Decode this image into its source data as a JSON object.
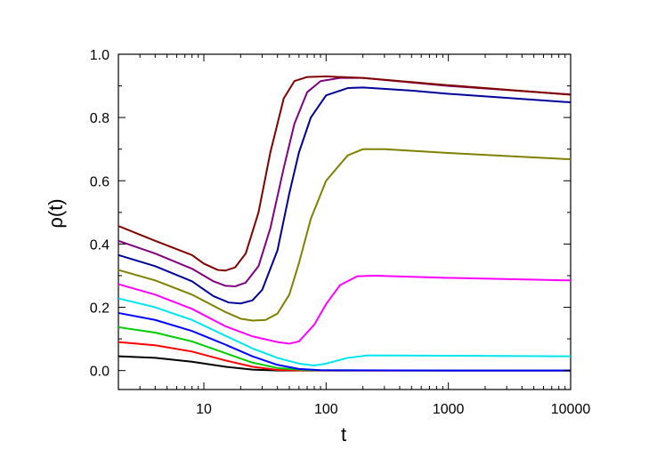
{
  "chart_data": {
    "type": "line",
    "title": "",
    "xlabel": "t",
    "ylabel": "ρ(t)",
    "xscale": "log",
    "xlim": [
      2,
      10000
    ],
    "ylim": [
      -0.06,
      1.0
    ],
    "x_ticks": [
      10,
      100,
      1000,
      10000
    ],
    "x_tick_labels": [
      "10",
      "100",
      "1000",
      "10000"
    ],
    "y_ticks": [
      0.0,
      0.2,
      0.4,
      0.6,
      0.8,
      1.0
    ],
    "y_tick_labels": [
      "0.0",
      "0.2",
      "0.4",
      "0.6",
      "0.8",
      "1.0"
    ],
    "grid": false,
    "legend": "none",
    "series": [
      {
        "color": "#000000",
        "points": [
          [
            2,
            0.045
          ],
          [
            4,
            0.04
          ],
          [
            8,
            0.028
          ],
          [
            15,
            0.012
          ],
          [
            25,
            0.003
          ],
          [
            40,
            0.0
          ],
          [
            100,
            0.0
          ],
          [
            1000,
            0.0
          ],
          [
            10000,
            0.0
          ]
        ]
      },
      {
        "color": "#ff0000",
        "points": [
          [
            2,
            0.09
          ],
          [
            4,
            0.08
          ],
          [
            8,
            0.06
          ],
          [
            15,
            0.032
          ],
          [
            25,
            0.012
          ],
          [
            40,
            0.002
          ],
          [
            70,
            0.0
          ],
          [
            1000,
            0.0
          ],
          [
            10000,
            0.0
          ]
        ]
      },
      {
        "color": "#00cc00",
        "points": [
          [
            2,
            0.137
          ],
          [
            4,
            0.12
          ],
          [
            8,
            0.092
          ],
          [
            15,
            0.055
          ],
          [
            25,
            0.025
          ],
          [
            40,
            0.008
          ],
          [
            70,
            0.001
          ],
          [
            1000,
            0.0
          ],
          [
            10000,
            0.0
          ]
        ]
      },
      {
        "color": "#0000ff",
        "points": [
          [
            2,
            0.182
          ],
          [
            4,
            0.16
          ],
          [
            8,
            0.125
          ],
          [
            15,
            0.082
          ],
          [
            25,
            0.045
          ],
          [
            40,
            0.018
          ],
          [
            60,
            0.005
          ],
          [
            90,
            0.001
          ],
          [
            1000,
            0.0
          ],
          [
            10000,
            0.0
          ]
        ]
      },
      {
        "color": "#00e5ee",
        "points": [
          [
            2,
            0.228
          ],
          [
            4,
            0.2
          ],
          [
            8,
            0.16
          ],
          [
            15,
            0.11
          ],
          [
            25,
            0.07
          ],
          [
            40,
            0.04
          ],
          [
            60,
            0.022
          ],
          [
            80,
            0.016
          ],
          [
            100,
            0.022
          ],
          [
            150,
            0.04
          ],
          [
            220,
            0.048
          ],
          [
            1000,
            0.047
          ],
          [
            10000,
            0.045
          ]
        ]
      },
      {
        "color": "#ff00ff",
        "points": [
          [
            2,
            0.273
          ],
          [
            4,
            0.24
          ],
          [
            8,
            0.195
          ],
          [
            15,
            0.14
          ],
          [
            25,
            0.108
          ],
          [
            40,
            0.09
          ],
          [
            50,
            0.085
          ],
          [
            60,
            0.092
          ],
          [
            80,
            0.145
          ],
          [
            100,
            0.21
          ],
          [
            130,
            0.27
          ],
          [
            180,
            0.298
          ],
          [
            250,
            0.3
          ],
          [
            1000,
            0.293
          ],
          [
            10000,
            0.285
          ]
        ]
      },
      {
        "color": "#808000",
        "points": [
          [
            2,
            0.318
          ],
          [
            4,
            0.285
          ],
          [
            8,
            0.24
          ],
          [
            15,
            0.185
          ],
          [
            20,
            0.164
          ],
          [
            25,
            0.158
          ],
          [
            32,
            0.16
          ],
          [
            40,
            0.18
          ],
          [
            50,
            0.24
          ],
          [
            60,
            0.34
          ],
          [
            75,
            0.48
          ],
          [
            100,
            0.6
          ],
          [
            150,
            0.68
          ],
          [
            200,
            0.7
          ],
          [
            300,
            0.7
          ],
          [
            1000,
            0.688
          ],
          [
            10000,
            0.668
          ]
        ]
      },
      {
        "color": "#000099",
        "points": [
          [
            2,
            0.365
          ],
          [
            4,
            0.33
          ],
          [
            8,
            0.282
          ],
          [
            12,
            0.235
          ],
          [
            16,
            0.215
          ],
          [
            20,
            0.212
          ],
          [
            25,
            0.222
          ],
          [
            30,
            0.255
          ],
          [
            40,
            0.38
          ],
          [
            50,
            0.56
          ],
          [
            60,
            0.69
          ],
          [
            75,
            0.8
          ],
          [
            100,
            0.87
          ],
          [
            150,
            0.893
          ],
          [
            200,
            0.895
          ],
          [
            500,
            0.885
          ],
          [
            1000,
            0.875
          ],
          [
            10000,
            0.848
          ]
        ]
      },
      {
        "color": "#800080",
        "points": [
          [
            2,
            0.41
          ],
          [
            4,
            0.37
          ],
          [
            8,
            0.322
          ],
          [
            12,
            0.282
          ],
          [
            15,
            0.268
          ],
          [
            18,
            0.266
          ],
          [
            22,
            0.278
          ],
          [
            28,
            0.33
          ],
          [
            35,
            0.45
          ],
          [
            45,
            0.64
          ],
          [
            55,
            0.78
          ],
          [
            70,
            0.88
          ],
          [
            90,
            0.915
          ],
          [
            130,
            0.925
          ],
          [
            200,
            0.925
          ],
          [
            1000,
            0.9
          ],
          [
            10000,
            0.873
          ]
        ]
      },
      {
        "color": "#800000",
        "points": [
          [
            2,
            0.457
          ],
          [
            4,
            0.41
          ],
          [
            8,
            0.365
          ],
          [
            10,
            0.338
          ],
          [
            13,
            0.318
          ],
          [
            15,
            0.316
          ],
          [
            18,
            0.326
          ],
          [
            22,
            0.37
          ],
          [
            28,
            0.5
          ],
          [
            35,
            0.69
          ],
          [
            45,
            0.86
          ],
          [
            55,
            0.915
          ],
          [
            70,
            0.928
          ],
          [
            100,
            0.93
          ],
          [
            200,
            0.925
          ],
          [
            1000,
            0.902
          ],
          [
            10000,
            0.872
          ]
        ]
      }
    ]
  }
}
